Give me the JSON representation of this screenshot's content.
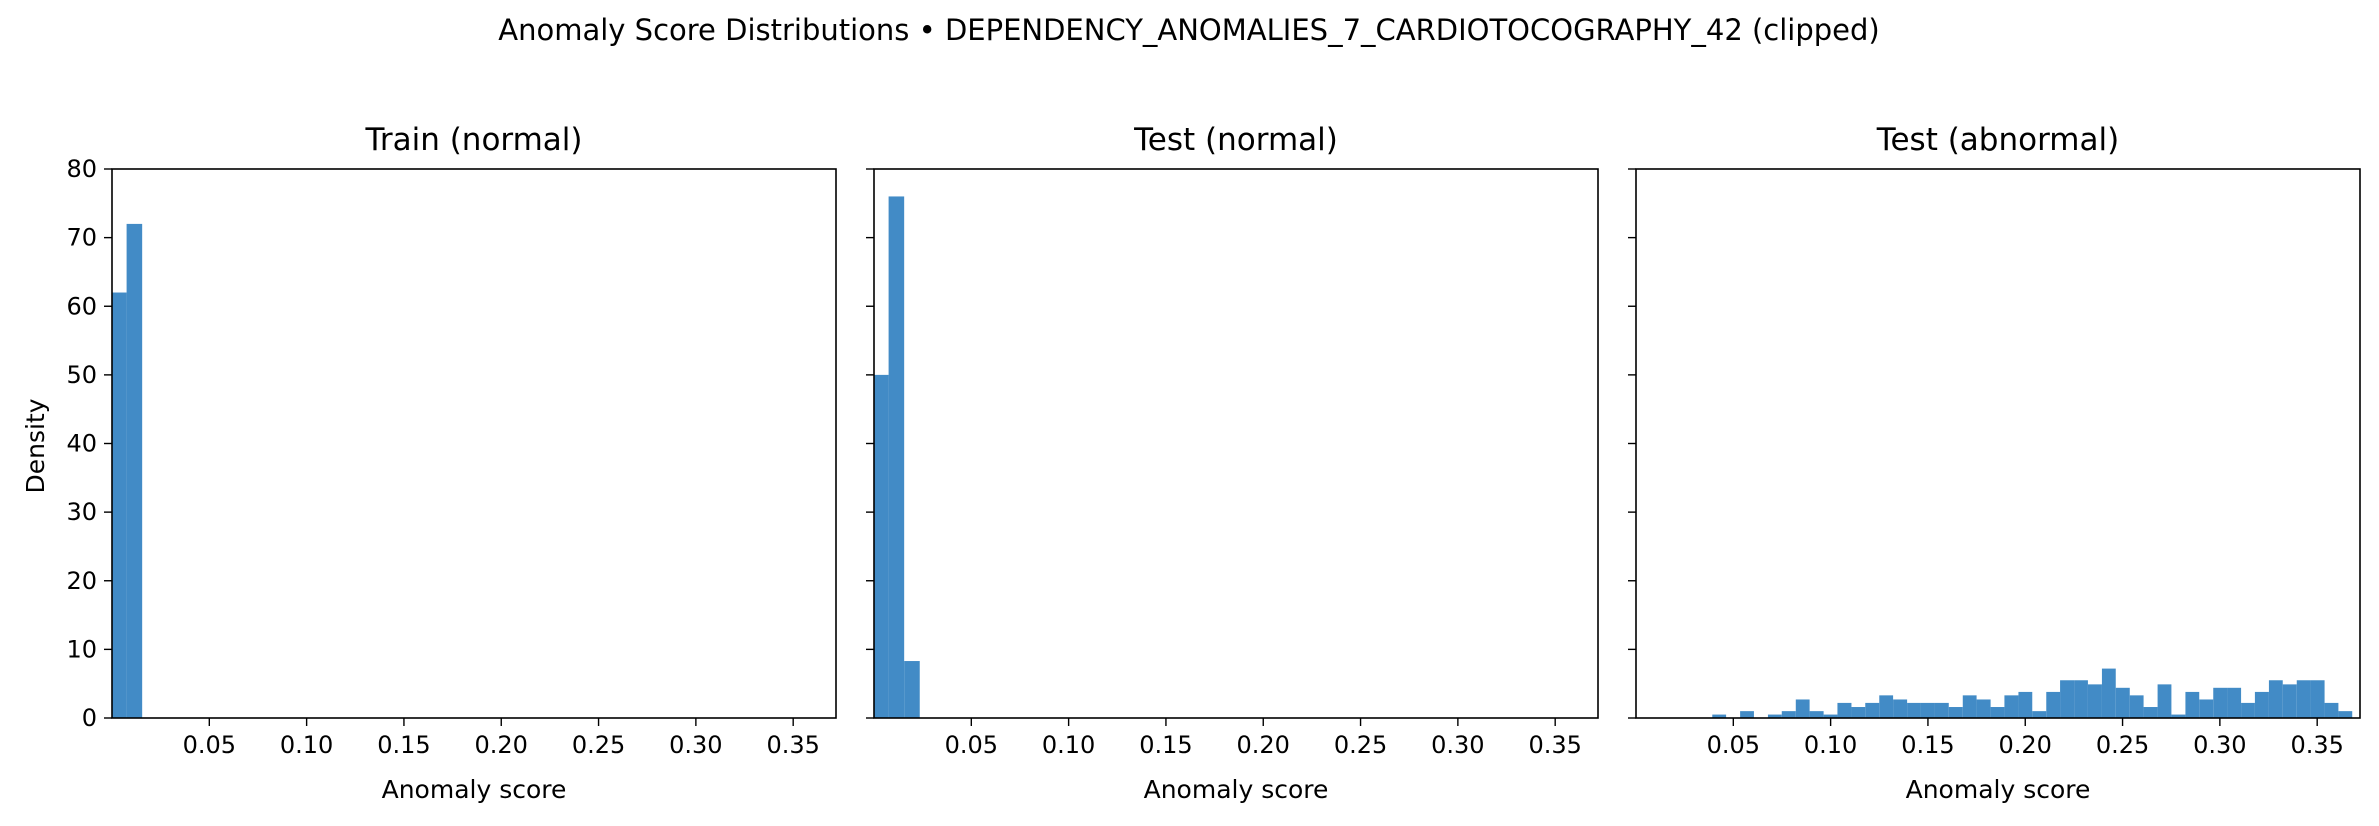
{
  "suptitle": "Anomaly Score Distributions • DEPENDENCY_ANOMALIES_7_CARDIOTOCOGRAPHY_42 (clipped)",
  "ylabel": "Density",
  "xlabel": "Anomaly score",
  "colors": {
    "bar": "#428bc6",
    "axis": "#000000"
  },
  "chart_data": [
    {
      "type": "bar",
      "title": "Train (normal)",
      "xlabel": "Anomaly score",
      "ylabel": "Density",
      "xlim": [
        0.0,
        0.372
      ],
      "ylim": [
        0,
        80
      ],
      "xticks": [
        "0.05",
        "0.10",
        "0.15",
        "0.20",
        "0.25",
        "0.30",
        "0.35"
      ],
      "yticks": [
        "0",
        "10",
        "20",
        "30",
        "40",
        "50",
        "60",
        "70",
        "80"
      ],
      "bins": [
        [
          0.0,
          0.0075,
          62
        ],
        [
          0.0075,
          0.0155,
          72
        ]
      ]
    },
    {
      "type": "bar",
      "title": "Test (normal)",
      "xlabel": "Anomaly score",
      "ylabel": "",
      "xlim": [
        0.0,
        0.372
      ],
      "ylim": [
        0,
        80
      ],
      "xticks": [
        "0.05",
        "0.10",
        "0.15",
        "0.20",
        "0.25",
        "0.30",
        "0.35"
      ],
      "yticks": [],
      "bins": [
        [
          0.0,
          0.0075,
          50
        ],
        [
          0.0075,
          0.0155,
          76
        ],
        [
          0.0155,
          0.0235,
          8.3
        ]
      ]
    },
    {
      "type": "bar",
      "title": "Test (abnormal)",
      "xlabel": "Anomaly score",
      "ylabel": "",
      "xlim": [
        0.0,
        0.372
      ],
      "ylim": [
        0,
        80
      ],
      "xticks": [
        "0.05",
        "0.10",
        "0.15",
        "0.20",
        "0.25",
        "0.30",
        "0.35"
      ],
      "yticks": [],
      "bins": [
        [
          0.0392,
          0.0463,
          0.5
        ],
        [
          0.0463,
          0.0535,
          0
        ],
        [
          0.0535,
          0.0606,
          1.0
        ],
        [
          0.0606,
          0.0678,
          0
        ],
        [
          0.0678,
          0.0749,
          0.5
        ],
        [
          0.0749,
          0.0821,
          1.0
        ],
        [
          0.0821,
          0.0892,
          2.7
        ],
        [
          0.0892,
          0.0964,
          1.0
        ],
        [
          0.0964,
          0.1035,
          0.5
        ],
        [
          0.1035,
          0.1107,
          2.2
        ],
        [
          0.1107,
          0.1178,
          1.6
        ],
        [
          0.1178,
          0.125,
          2.2
        ],
        [
          0.125,
          0.1321,
          3.3
        ],
        [
          0.1321,
          0.1393,
          2.7
        ],
        [
          0.1393,
          0.1464,
          2.2
        ],
        [
          0.1464,
          0.1536,
          2.2
        ],
        [
          0.1536,
          0.1607,
          2.2
        ],
        [
          0.1607,
          0.1679,
          1.6
        ],
        [
          0.1679,
          0.175,
          3.3
        ],
        [
          0.175,
          0.1822,
          2.7
        ],
        [
          0.1822,
          0.1893,
          1.6
        ],
        [
          0.1893,
          0.1965,
          3.3
        ],
        [
          0.1965,
          0.2036,
          3.8
        ],
        [
          0.2036,
          0.2108,
          1.0
        ],
        [
          0.2108,
          0.2179,
          3.8
        ],
        [
          0.2179,
          0.2251,
          5.5
        ],
        [
          0.2251,
          0.2322,
          5.5
        ],
        [
          0.2322,
          0.2394,
          4.9
        ],
        [
          0.2394,
          0.2465,
          7.2
        ],
        [
          0.2465,
          0.2537,
          4.4
        ],
        [
          0.2537,
          0.2608,
          3.3
        ],
        [
          0.2608,
          0.268,
          1.6
        ],
        [
          0.268,
          0.2751,
          4.9
        ],
        [
          0.2751,
          0.2823,
          0.5
        ],
        [
          0.2823,
          0.2894,
          3.8
        ],
        [
          0.2894,
          0.2966,
          2.7
        ],
        [
          0.2966,
          0.3037,
          4.4
        ],
        [
          0.3037,
          0.3109,
          4.4
        ],
        [
          0.3109,
          0.318,
          2.2
        ],
        [
          0.318,
          0.3252,
          3.8
        ],
        [
          0.3252,
          0.3323,
          5.5
        ],
        [
          0.3323,
          0.3395,
          4.9
        ],
        [
          0.3395,
          0.3466,
          5.5
        ],
        [
          0.3466,
          0.3538,
          5.5
        ],
        [
          0.3538,
          0.3609,
          2.2
        ],
        [
          0.3609,
          0.368,
          1.0
        ]
      ]
    }
  ]
}
